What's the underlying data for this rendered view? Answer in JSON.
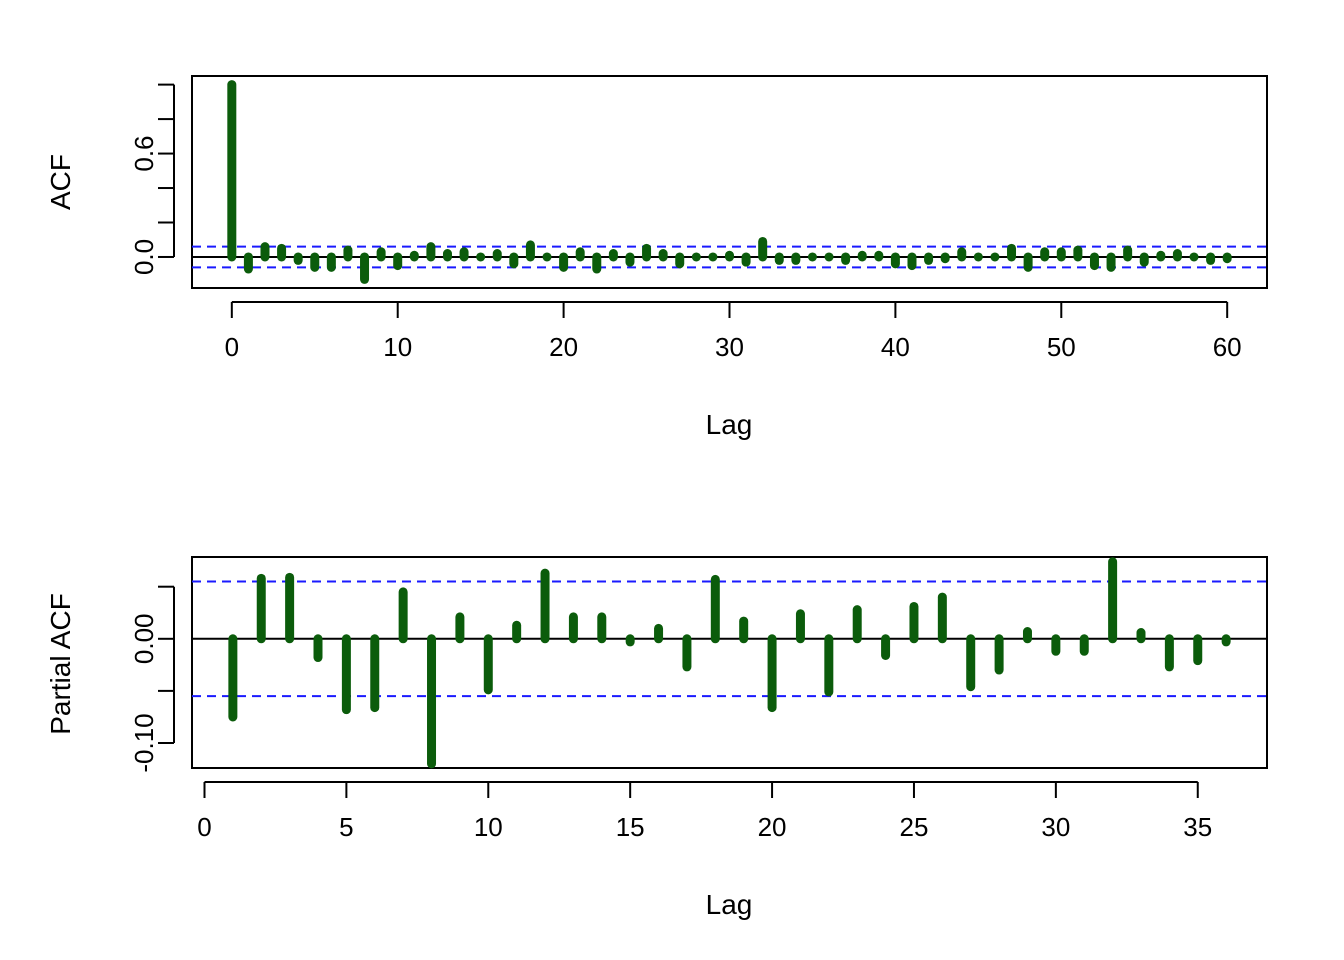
{
  "chart_data": [
    {
      "type": "bar",
      "title": "",
      "xlabel": "Lag",
      "ylabel": "ACF",
      "xlim": [
        -2.4,
        62.4
      ],
      "ylim": [
        -0.18,
        1.05
      ],
      "xticks": [
        0,
        10,
        20,
        30,
        40,
        50,
        60
      ],
      "yticks": [
        0.0,
        0.2,
        0.4,
        0.6,
        0.8,
        1.0
      ],
      "ytick_labels": [
        "0.0",
        "",
        "",
        "0.6",
        "",
        ""
      ],
      "confidence_band": 0.06,
      "bar_color": "#0b5c0b",
      "band_color": "#1a1aff",
      "x": [
        0,
        1,
        2,
        3,
        4,
        5,
        6,
        7,
        8,
        9,
        10,
        11,
        12,
        13,
        14,
        15,
        16,
        17,
        18,
        19,
        20,
        21,
        22,
        23,
        24,
        25,
        26,
        27,
        28,
        29,
        30,
        31,
        32,
        33,
        34,
        35,
        36,
        37,
        38,
        39,
        40,
        41,
        42,
        43,
        44,
        45,
        46,
        47,
        48,
        49,
        50,
        51,
        52,
        53,
        54,
        55,
        56,
        57,
        58,
        59,
        60
      ],
      "values": [
        1.0,
        -0.07,
        0.06,
        0.05,
        -0.02,
        -0.06,
        -0.06,
        0.04,
        -0.13,
        0.03,
        -0.05,
        0.01,
        0.06,
        0.02,
        0.03,
        0.0,
        0.02,
        -0.04,
        0.07,
        0.0,
        -0.06,
        0.03,
        -0.07,
        0.02,
        -0.03,
        0.05,
        0.02,
        -0.04,
        0.0,
        0.0,
        0.01,
        -0.03,
        0.09,
        -0.02,
        -0.02,
        0.0,
        0.0,
        -0.02,
        0.01,
        0.01,
        -0.04,
        -0.05,
        -0.02,
        -0.01,
        0.03,
        0.0,
        0.0,
        0.05,
        -0.06,
        0.03,
        0.03,
        0.04,
        -0.05,
        -0.06,
        0.04,
        -0.03,
        0.01,
        0.02,
        0.0,
        -0.02,
        -0.01
      ]
    },
    {
      "type": "bar",
      "title": "",
      "xlabel": "Lag",
      "ylabel": "Partial ACF",
      "xlim": [
        -0.44,
        37.44
      ],
      "ylim": [
        -0.124,
        0.0785
      ],
      "xticks": [
        0,
        5,
        10,
        15,
        20,
        25,
        30,
        35
      ],
      "yticks": [
        -0.1,
        -0.05,
        0.0,
        0.05
      ],
      "ytick_labels": [
        "-0.10",
        "",
        "0.00",
        ""
      ],
      "confidence_band": 0.055,
      "bar_color": "#0b5c0b",
      "band_color": "#1a1aff",
      "x": [
        1,
        2,
        3,
        4,
        5,
        6,
        7,
        8,
        9,
        10,
        11,
        12,
        13,
        14,
        15,
        16,
        17,
        18,
        19,
        20,
        21,
        22,
        23,
        24,
        25,
        26,
        27,
        28,
        29,
        30,
        31,
        32,
        33,
        34,
        35,
        36
      ],
      "values": [
        -0.075,
        0.058,
        0.059,
        -0.018,
        -0.068,
        -0.066,
        0.045,
        -0.12,
        0.021,
        -0.049,
        0.013,
        0.063,
        0.021,
        0.021,
        -0.003,
        0.01,
        -0.027,
        0.057,
        0.017,
        -0.066,
        0.024,
        -0.051,
        0.028,
        -0.016,
        0.031,
        0.04,
        -0.046,
        -0.03,
        0.007,
        -0.012,
        -0.012,
        0.074,
        0.006,
        -0.027,
        -0.021,
        -0.003
      ]
    }
  ]
}
